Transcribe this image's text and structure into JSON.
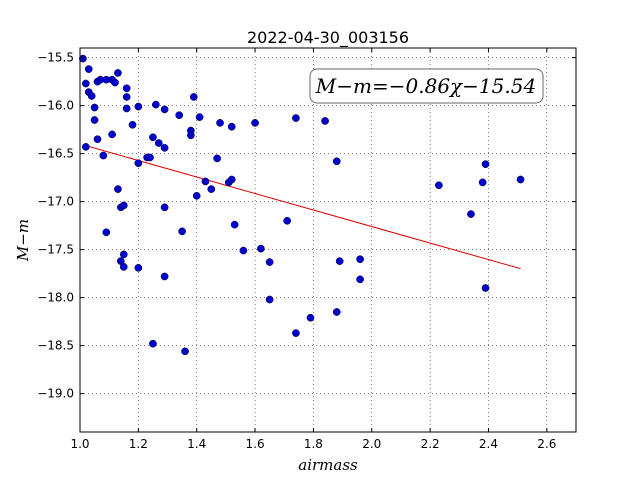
{
  "chart_data": {
    "type": "scatter",
    "title": "2022-04-30_003156",
    "xlabel": "airmass",
    "ylabel": "M−m",
    "xlim": [
      1.0,
      2.7
    ],
    "ylim": [
      -19.4,
      -15.4
    ],
    "x_ticks": [
      1.0,
      1.2,
      1.4,
      1.6,
      1.8,
      2.0,
      2.2,
      2.4,
      2.6
    ],
    "x_tick_labels": [
      "1.0",
      "1.2",
      "1.4",
      "1.6",
      "1.8",
      "2.0",
      "2.2",
      "2.4",
      "2.6"
    ],
    "y_ticks": [
      -15.5,
      -16.0,
      -16.5,
      -17.0,
      -17.5,
      -18.0,
      -18.5,
      -19.0
    ],
    "y_tick_labels": [
      "−15.5",
      "−16.0",
      "−16.5",
      "−17.0",
      "−17.5",
      "−18.0",
      "−18.5",
      "−19.0"
    ],
    "grid": true,
    "annotation": "M−m=−0.86χ−15.54",
    "colors": {
      "points": "#0000cc",
      "fit": "#dd0000"
    },
    "fit": {
      "slope": -0.86,
      "intercept": -15.54,
      "x_range": [
        1.02,
        2.51
      ]
    },
    "points": [
      {
        "x": 1.01,
        "y": -15.51
      },
      {
        "x": 1.02,
        "y": -15.77
      },
      {
        "x": 1.03,
        "y": -15.62
      },
      {
        "x": 1.03,
        "y": -15.86
      },
      {
        "x": 1.04,
        "y": -15.9
      },
      {
        "x": 1.05,
        "y": -16.02
      },
      {
        "x": 1.05,
        "y": -16.15
      },
      {
        "x": 1.06,
        "y": -15.75
      },
      {
        "x": 1.06,
        "y": -16.35
      },
      {
        "x": 1.07,
        "y": -15.73
      },
      {
        "x": 1.08,
        "y": -16.52
      },
      {
        "x": 1.09,
        "y": -15.73
      },
      {
        "x": 1.11,
        "y": -15.73
      },
      {
        "x": 1.11,
        "y": -16.3
      },
      {
        "x": 1.13,
        "y": -15.66
      },
      {
        "x": 1.12,
        "y": -15.76
      },
      {
        "x": 1.02,
        "y": -16.43
      },
      {
        "x": 1.13,
        "y": -16.87
      },
      {
        "x": 1.14,
        "y": -17.06
      },
      {
        "x": 1.15,
        "y": -17.04
      },
      {
        "x": 1.16,
        "y": -15.82
      },
      {
        "x": 1.16,
        "y": -15.91
      },
      {
        "x": 1.16,
        "y": -16.03
      },
      {
        "x": 1.09,
        "y": -17.32
      },
      {
        "x": 1.14,
        "y": -17.62
      },
      {
        "x": 1.15,
        "y": -17.55
      },
      {
        "x": 1.15,
        "y": -17.68
      },
      {
        "x": 1.18,
        "y": -16.2
      },
      {
        "x": 1.2,
        "y": -16.01
      },
      {
        "x": 1.2,
        "y": -16.6
      },
      {
        "x": 1.2,
        "y": -17.69
      },
      {
        "x": 1.23,
        "y": -16.54
      },
      {
        "x": 1.24,
        "y": -16.54
      },
      {
        "x": 1.25,
        "y": -16.33
      },
      {
        "x": 1.26,
        "y": -15.99
      },
      {
        "x": 1.27,
        "y": -16.39
      },
      {
        "x": 1.25,
        "y": -18.48
      },
      {
        "x": 1.29,
        "y": -16.04
      },
      {
        "x": 1.29,
        "y": -16.44
      },
      {
        "x": 1.29,
        "y": -17.06
      },
      {
        "x": 1.29,
        "y": -17.78
      },
      {
        "x": 1.34,
        "y": -16.1
      },
      {
        "x": 1.35,
        "y": -17.31
      },
      {
        "x": 1.36,
        "y": -18.56
      },
      {
        "x": 1.38,
        "y": -16.26
      },
      {
        "x": 1.38,
        "y": -16.31
      },
      {
        "x": 1.39,
        "y": -15.91
      },
      {
        "x": 1.4,
        "y": -16.94
      },
      {
        "x": 1.41,
        "y": -16.12
      },
      {
        "x": 1.43,
        "y": -16.79
      },
      {
        "x": 1.45,
        "y": -16.87
      },
      {
        "x": 1.47,
        "y": -16.55
      },
      {
        "x": 1.48,
        "y": -16.18
      },
      {
        "x": 1.51,
        "y": -16.8
      },
      {
        "x": 1.52,
        "y": -16.22
      },
      {
        "x": 1.52,
        "y": -16.77
      },
      {
        "x": 1.53,
        "y": -17.24
      },
      {
        "x": 1.56,
        "y": -17.51
      },
      {
        "x": 1.6,
        "y": -16.18
      },
      {
        "x": 1.62,
        "y": -17.49
      },
      {
        "x": 1.65,
        "y": -17.63
      },
      {
        "x": 1.65,
        "y": -18.02
      },
      {
        "x": 1.71,
        "y": -17.2
      },
      {
        "x": 1.74,
        "y": -16.13
      },
      {
        "x": 1.74,
        "y": -18.37
      },
      {
        "x": 1.79,
        "y": -18.21
      },
      {
        "x": 1.84,
        "y": -16.16
      },
      {
        "x": 1.88,
        "y": -16.58
      },
      {
        "x": 1.88,
        "y": -18.15
      },
      {
        "x": 1.89,
        "y": -17.62
      },
      {
        "x": 1.96,
        "y": -17.6
      },
      {
        "x": 1.96,
        "y": -17.81
      },
      {
        "x": 2.23,
        "y": -16.83
      },
      {
        "x": 2.34,
        "y": -17.13
      },
      {
        "x": 2.38,
        "y": -16.8
      },
      {
        "x": 2.39,
        "y": -16.61
      },
      {
        "x": 2.39,
        "y": -17.9
      },
      {
        "x": 2.51,
        "y": -16.77
      }
    ]
  }
}
